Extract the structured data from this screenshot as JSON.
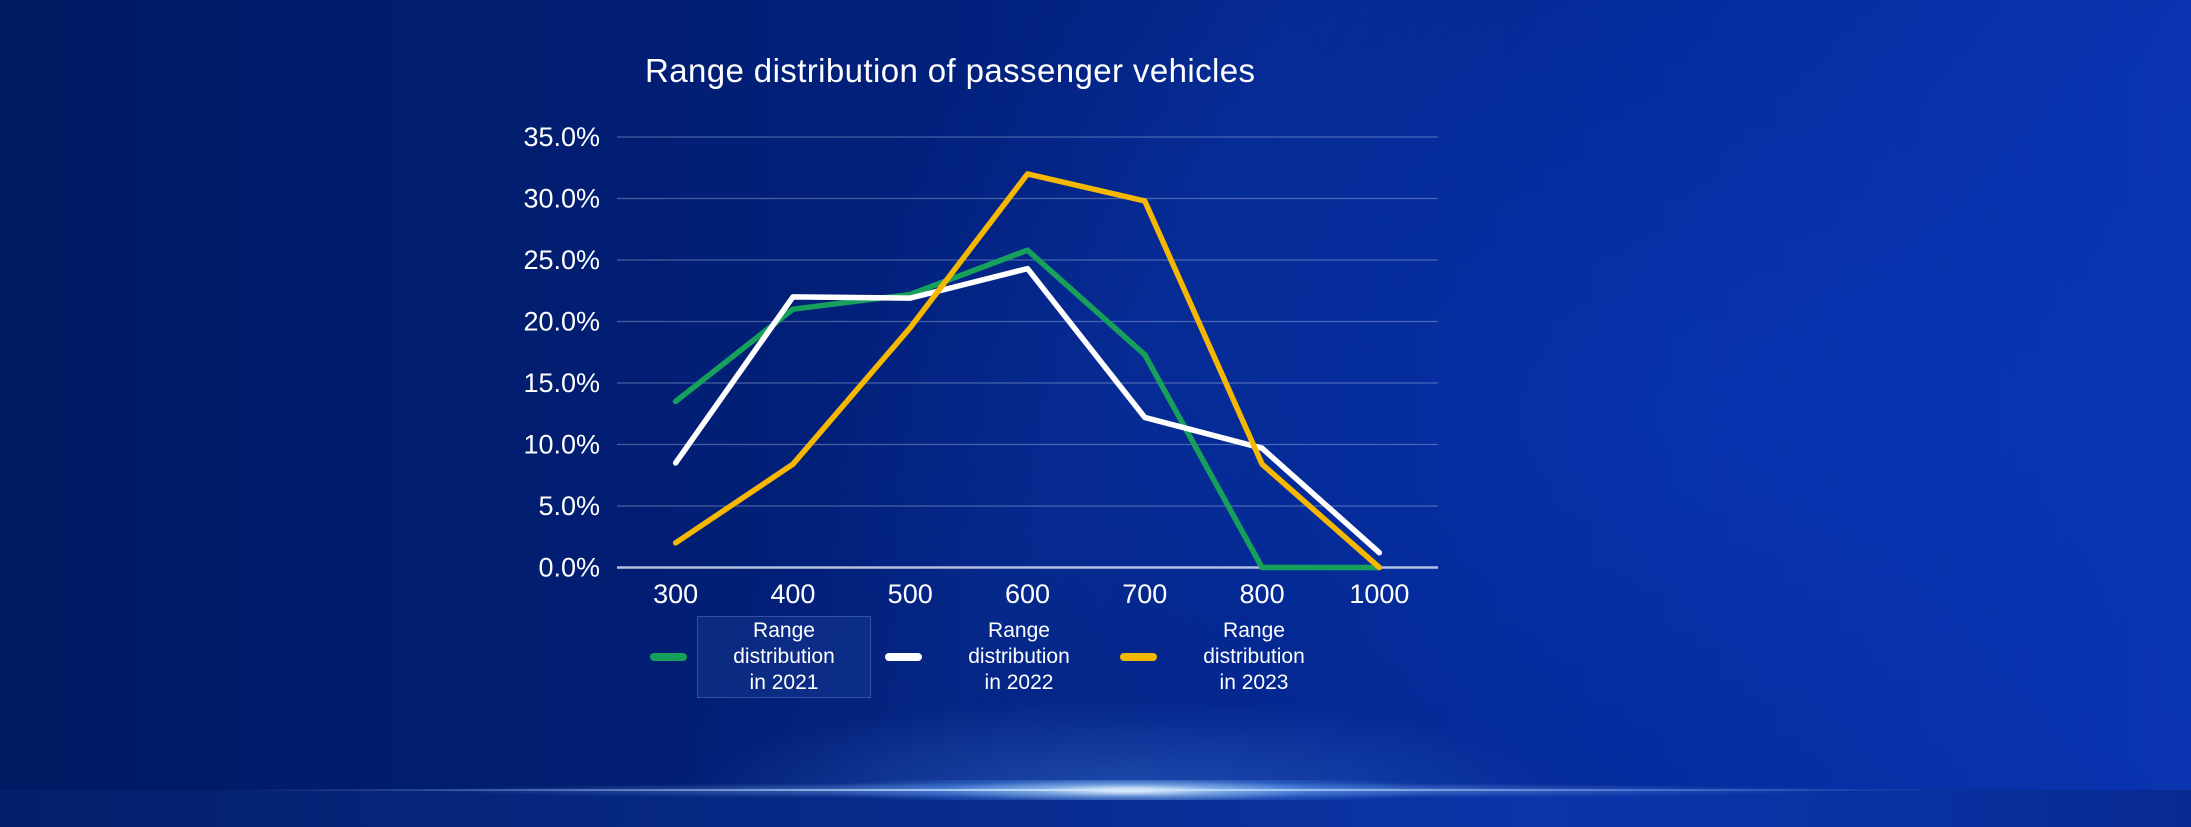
{
  "chart_data": {
    "type": "line",
    "title": "Range distribution of passenger vehicles",
    "categories": [
      "300",
      "400",
      "500",
      "600",
      "700",
      "800",
      "1000"
    ],
    "series": [
      {
        "name": "Range distribution in 2021",
        "label_lines": [
          "Range",
          "distribution",
          "in 2021"
        ],
        "color": "#17A05C",
        "legend_highlighted": true,
        "values": [
          13.5,
          21.0,
          22.2,
          25.8,
          17.3,
          0.0,
          0.0
        ]
      },
      {
        "name": "Range distribution in 2022",
        "label_lines": [
          "Range",
          "distribution",
          "in 2022"
        ],
        "color": "#FFFFFF",
        "legend_highlighted": false,
        "values": [
          8.5,
          22.0,
          21.9,
          24.3,
          12.2,
          9.7,
          1.2
        ]
      },
      {
        "name": "Range distribution in 2023",
        "label_lines": [
          "Range",
          "distribution",
          "in 2023"
        ],
        "color": "#F5B700",
        "legend_highlighted": false,
        "values": [
          2.0,
          8.4,
          19.5,
          32.0,
          29.8,
          8.4,
          0.0
        ]
      }
    ],
    "xlabel": "",
    "ylabel": "",
    "ylim": [
      0,
      35
    ],
    "ytick_step": 5,
    "ytick_labels": [
      "0.0%",
      "5.0%",
      "10.0%",
      "15.0%",
      "20.0%",
      "25.0%",
      "30.0%",
      "35.0%"
    ],
    "grid": "horizontal",
    "legend_position": "bottom",
    "background_color": "#02207A",
    "axis_line_color": "#C8D2E8",
    "gridline_color": "#8E9CC4"
  }
}
